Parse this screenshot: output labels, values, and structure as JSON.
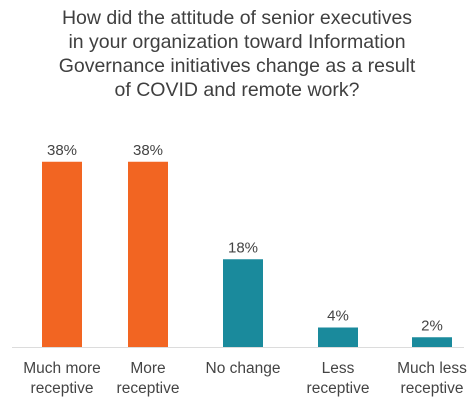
{
  "chart_data": {
    "type": "bar",
    "title_lines": [
      "How did the attitude of senior executives",
      "in your organization toward Information",
      "Governance initiatives change as a result",
      "of COVID and remote work?"
    ],
    "categories": [
      [
        "Much more",
        "receptive"
      ],
      [
        "More",
        "receptive"
      ],
      [
        "No change"
      ],
      [
        "Less",
        "receptive"
      ],
      [
        "Much less",
        "receptive"
      ]
    ],
    "values": [
      38,
      38,
      18,
      4,
      2
    ],
    "value_labels": [
      "38%",
      "38%",
      "18%",
      "4%",
      "2%"
    ],
    "colors": [
      "#f26522",
      "#f26522",
      "#1a8a9c",
      "#1a8a9c",
      "#1a8a9c"
    ],
    "ylim": [
      0,
      40
    ],
    "grid": false,
    "legend": "none"
  }
}
